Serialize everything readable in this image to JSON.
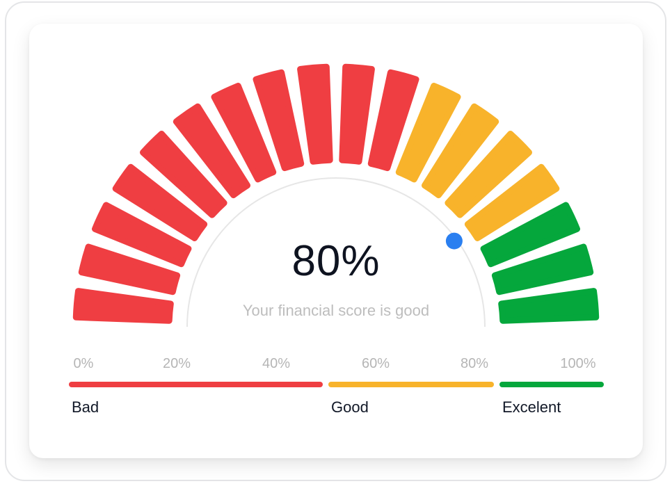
{
  "score": {
    "value": 0.8,
    "value_text": "80%",
    "caption": "Your financial score is good"
  },
  "colors": {
    "bad": "#ef3e42",
    "good": "#f8b32b",
    "excellent": "#05a73c",
    "marker": "#2a7ff0",
    "inner_arc": "#e6e6e6"
  },
  "gauge_segments": [
    "bad",
    "bad",
    "bad",
    "bad",
    "bad",
    "bad",
    "bad",
    "bad",
    "bad",
    "bad",
    "bad",
    "good",
    "good",
    "good",
    "good",
    "excellent",
    "excellent",
    "excellent"
  ],
  "ticks": [
    "0%",
    "20%",
    "40%",
    "60%",
    "80%",
    "100%"
  ],
  "zones": [
    {
      "name": "bad",
      "label": "Bad",
      "from": 0.0,
      "to": 0.475
    },
    {
      "name": "good",
      "label": "Good",
      "from": 0.485,
      "to": 0.795
    },
    {
      "name": "excellent",
      "label": "Excelent",
      "from": 0.805,
      "to": 1.0
    }
  ]
}
